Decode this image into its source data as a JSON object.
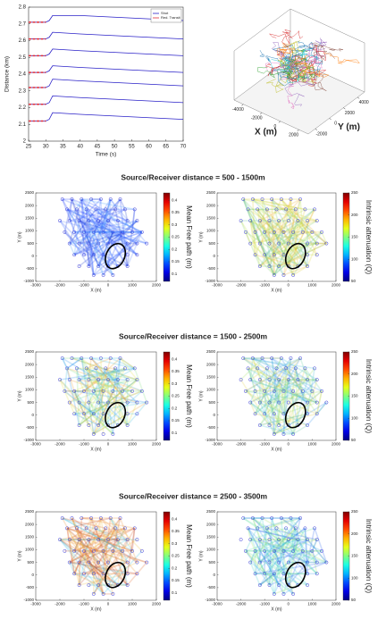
{
  "chart_data": [
    {
      "type": "line",
      "xlabel": "Time (s)",
      "ylabel": "Distance (km)",
      "x": [
        25,
        30,
        31,
        32,
        40,
        50,
        60,
        70
      ],
      "xlim": [
        25,
        70
      ],
      "xticks": [
        25,
        30,
        35,
        40,
        45,
        50,
        55,
        60,
        65,
        70
      ],
      "ylim": [
        2,
        2.8
      ],
      "yticks": [
        2,
        2.1,
        2.2,
        2.3,
        2.4,
        2.5,
        2.6,
        2.7,
        2.8
      ],
      "legend": "upper right",
      "series": [
        {
          "name": "Shot",
          "color": "#2b22c8",
          "values": [
            [
              2.71,
              2.71,
              2.72,
              2.75,
              2.75,
              2.74,
              2.73,
              2.72
            ],
            [
              2.61,
              2.61,
              2.62,
              2.65,
              2.64,
              2.63,
              2.62,
              2.61
            ],
            [
              2.51,
              2.51,
              2.52,
              2.55,
              2.54,
              2.53,
              2.52,
              2.51
            ],
            [
              2.41,
              2.41,
              2.42,
              2.45,
              2.44,
              2.43,
              2.42,
              2.41
            ],
            [
              2.32,
              2.32,
              2.33,
              2.37,
              2.36,
              2.35,
              2.34,
              2.33
            ],
            [
              2.22,
              2.22,
              2.23,
              2.27,
              2.26,
              2.25,
              2.24,
              2.23
            ],
            [
              2.12,
              2.12,
              2.13,
              2.17,
              2.16,
              2.15,
              2.14,
              2.13
            ]
          ]
        },
        {
          "name": "Red. Transit",
          "color": "#e0303a",
          "values": [
            [
              2.71,
              2.71,
              null,
              null,
              null,
              null,
              null,
              null
            ],
            [
              2.61,
              2.61,
              null,
              null,
              null,
              null,
              null,
              null
            ],
            [
              2.51,
              2.51,
              null,
              null,
              null,
              null,
              null,
              null
            ],
            [
              2.41,
              2.41,
              null,
              null,
              null,
              null,
              null,
              null
            ],
            [
              2.32,
              2.32,
              null,
              null,
              null,
              null,
              null,
              null
            ],
            [
              2.22,
              2.22,
              null,
              null,
              null,
              null,
              null,
              null
            ],
            [
              2.12,
              2.12,
              null,
              null,
              null,
              null,
              null,
              null
            ]
          ]
        }
      ]
    },
    {
      "type": "rays3d",
      "xlabel": "X (m)",
      "ylabel": "Y (m)",
      "xlim": [
        -5000,
        3000
      ],
      "xticks": [
        -4000,
        -2000,
        0,
        2000
      ],
      "ylim": [
        -3000,
        5000
      ],
      "yticks": [
        -2000,
        0,
        2000,
        4000
      ],
      "path_colors": [
        "#1f77b4",
        "#ff7f0e",
        "#2ca02c",
        "#d62728",
        "#9467bd",
        "#8c564b",
        "#e377c2",
        "#17becf",
        "#bcbd22"
      ]
    },
    {
      "type": "map-pair",
      "title": "Source/Receiver distance = 500 - 1500m",
      "panels": [
        {
          "xlabel": "X (m)",
          "ylabel": "Y (m)",
          "xlim": [
            -3000,
            2000
          ],
          "xticks": [
            -3000,
            -2000,
            -1000,
            0,
            1000,
            2000
          ],
          "ylim": [
            -1000,
            2500
          ],
          "yticks": [
            -1000,
            -500,
            0,
            500,
            1000,
            1500,
            2000,
            2500
          ],
          "path_colors": [
            "#2040ff",
            "#3060ff",
            "#5080ff",
            "#1030d0",
            "#40a0ff"
          ],
          "colorbar": {
            "label": "Mean Free path (m)",
            "colormap": "jet",
            "lim": [
              0.07,
              0.43
            ],
            "ticks": [
              0.1,
              0.15,
              0.2,
              0.25,
              0.3,
              0.35,
              0.4
            ]
          }
        },
        {
          "xlabel": "X (m)",
          "ylabel": "Y (m)",
          "xlim": [
            -3000,
            2000
          ],
          "xticks": [
            -3000,
            -2000,
            -1000,
            0,
            1000,
            2000
          ],
          "ylim": [
            -1000,
            2500
          ],
          "yticks": [
            -1000,
            -500,
            0,
            500,
            1000,
            1500,
            2000,
            2500
          ],
          "path_colors": [
            "#c0e040",
            "#e0d030",
            "#80d060",
            "#f0b030",
            "#60c0a0"
          ],
          "colorbar": {
            "label": "Intrinsic attenuation (Q)",
            "colormap": "jet",
            "lim": [
              50,
              250
            ],
            "ticks": [
              50,
              100,
              150,
              200,
              250
            ]
          }
        }
      ]
    },
    {
      "type": "map-pair",
      "title": "Source/Receiver distance = 1500 - 2500m",
      "panels": [
        {
          "xlabel": "X (m)",
          "ylabel": "Y (m)",
          "xlim": [
            -3000,
            2000
          ],
          "xticks": [
            -3000,
            -2000,
            -1000,
            0,
            1000,
            2000
          ],
          "ylim": [
            -1000,
            2500
          ],
          "yticks": [
            -1000,
            -500,
            0,
            500,
            1000,
            1500,
            2000,
            2500
          ],
          "path_colors": [
            "#40c0e0",
            "#80e080",
            "#e0e040",
            "#2090f0",
            "#f0a030"
          ],
          "colorbar": {
            "label": "Mean Free path (m)",
            "colormap": "jet",
            "lim": [
              0.07,
              0.43
            ],
            "ticks": [
              0.1,
              0.15,
              0.2,
              0.25,
              0.3,
              0.35,
              0.4
            ]
          }
        },
        {
          "xlabel": "X (m)",
          "ylabel": "Y (m)",
          "xlim": [
            -3000,
            2000
          ],
          "xticks": [
            -3000,
            -2000,
            -1000,
            0,
            1000,
            2000
          ],
          "ylim": [
            -1000,
            2500
          ],
          "yticks": [
            -1000,
            -500,
            0,
            500,
            1000,
            1500,
            2000,
            2500
          ],
          "path_colors": [
            "#60d0a0",
            "#40c0d0",
            "#a0e060",
            "#3090f0",
            "#e0d040"
          ],
          "colorbar": {
            "label": "Intrinsic attenuation (Q)",
            "colormap": "jet",
            "lim": [
              50,
              250
            ],
            "ticks": [
              50,
              100,
              150,
              200,
              250
            ]
          }
        }
      ]
    },
    {
      "type": "map-pair",
      "title": "Source/Receiver distance = 2500 - 3500m",
      "panels": [
        {
          "xlabel": "X (m)",
          "ylabel": "Y (m)",
          "xlim": [
            -3000,
            2000
          ],
          "xticks": [
            -3000,
            -2000,
            -1000,
            0,
            1000,
            2000
          ],
          "ylim": [
            -1000,
            2500
          ],
          "yticks": [
            -1000,
            -500,
            0,
            500,
            1000,
            1500,
            2000,
            2500
          ],
          "path_colors": [
            "#f09030",
            "#e06020",
            "#f0c040",
            "#c04020",
            "#40c0e0"
          ],
          "colorbar": {
            "label": "Mean Free path (m)",
            "colormap": "jet",
            "lim": [
              0.07,
              0.43
            ],
            "ticks": [
              0.1,
              0.15,
              0.2,
              0.25,
              0.3,
              0.35,
              0.4
            ]
          }
        },
        {
          "xlabel": "X (m)",
          "ylabel": "Y (m)",
          "xlim": [
            -3000,
            2000
          ],
          "xticks": [
            -3000,
            -2000,
            -1000,
            0,
            1000,
            2000
          ],
          "ylim": [
            -1000,
            2500
          ],
          "yticks": [
            -1000,
            -500,
            0,
            500,
            1000,
            1500,
            2000,
            2500
          ],
          "path_colors": [
            "#40d0d0",
            "#30a0f0",
            "#60e0a0",
            "#2060f0",
            "#a0e060"
          ],
          "colorbar": {
            "label": "Intrinsic attenuation (Q)",
            "colormap": "jet",
            "lim": [
              50,
              250
            ],
            "ticks": [
              50,
              100,
              150,
              200,
              250
            ]
          }
        }
      ]
    }
  ],
  "stations": {
    "x": [
      -1900,
      -1500,
      -1100,
      -700,
      -300,
      100,
      500,
      -1700,
      -1300,
      -900,
      -500,
      -100,
      300,
      700,
      1100,
      -2000,
      -1600,
      -1200,
      -800,
      -400,
      0,
      400,
      800,
      1200,
      -1800,
      -1400,
      -1000,
      -600,
      -200,
      200,
      600,
      1000,
      1400,
      -1600,
      -1200,
      -800,
      -400,
      0,
      800,
      1200,
      1600,
      -1400,
      -1000,
      -600,
      -200,
      800,
      1200,
      -1200,
      -800,
      -400,
      0,
      400,
      800,
      -600,
      -200,
      200
    ],
    "y": [
      2250,
      2250,
      2250,
      2250,
      2250,
      2250,
      2250,
      1850,
      1850,
      1850,
      1850,
      1850,
      1850,
      1850,
      1850,
      1400,
      1400,
      1400,
      1400,
      1400,
      1400,
      1400,
      1400,
      1400,
      950,
      950,
      950,
      950,
      950,
      950,
      950,
      950,
      950,
      500,
      500,
      500,
      500,
      500,
      500,
      500,
      500,
      50,
      50,
      50,
      50,
      50,
      50,
      -400,
      -400,
      -400,
      -400,
      -400,
      -400,
      -750,
      -750,
      -750
    ]
  }
}
